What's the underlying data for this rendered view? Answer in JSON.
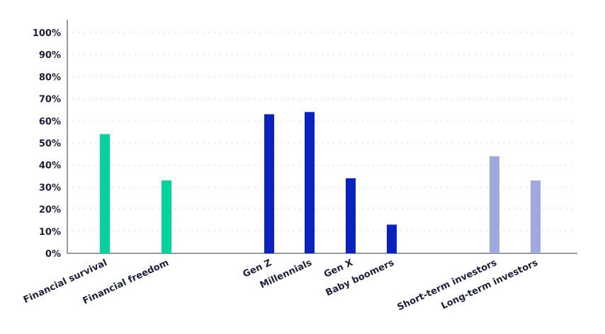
{
  "chart_data": {
    "type": "bar",
    "categories": [
      "Financial survival",
      "Financial freedom",
      "Gen Z",
      "Millennials",
      "Gen X",
      "Baby boomers",
      "Short-term investors",
      "Long-term investors"
    ],
    "values": [
      54,
      33,
      63,
      64,
      34,
      13,
      44,
      33
    ],
    "bar_colors": [
      "#05d39c",
      "#05d39c",
      "#0a22c0",
      "#0a22c0",
      "#0a22c0",
      "#0a22c0",
      "#a0a8e0",
      "#a0a8e0"
    ],
    "y_tick_labels": [
      "0%",
      "10%",
      "20%",
      "30%",
      "40%",
      "50%",
      "60%",
      "70%",
      "80%",
      "90%",
      "100%"
    ],
    "ylim": [
      0,
      100
    ],
    "grid": "dotted horizontal",
    "title": "",
    "xlabel": "",
    "ylabel": ""
  }
}
